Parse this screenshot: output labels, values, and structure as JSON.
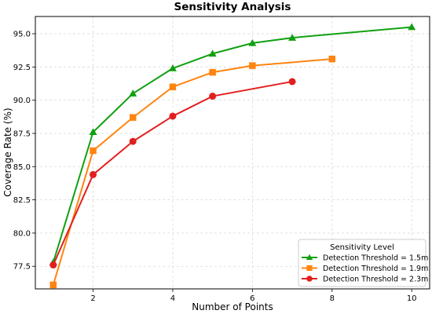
{
  "chart_data": {
    "type": "line",
    "title": "Sensitivity Analysis",
    "xlabel": "Number of Points",
    "ylabel": "Coverage Rate (%)",
    "xlim": [
      0.55,
      10.45
    ],
    "ylim": [
      75.8,
      96.3
    ],
    "xticks": [
      2,
      4,
      6,
      8,
      10
    ],
    "yticks": [
      77.5,
      80.0,
      82.5,
      85.0,
      87.5,
      90.0,
      92.5,
      95.0
    ],
    "grid": true,
    "legend": {
      "title": "Sensitivity Level",
      "placement": "bottom-right"
    },
    "series": [
      {
        "name": "Detection Threshold = 1.5m",
        "color": "#11a011",
        "marker": "triangle",
        "x": [
          1,
          2,
          3,
          4,
          5,
          6,
          7,
          10
        ],
        "y": [
          77.8,
          87.6,
          90.5,
          92.4,
          93.5,
          94.3,
          94.7,
          95.5
        ]
      },
      {
        "name": "Detection Threshold = 1.9m",
        "color": "#ff8410",
        "marker": "square",
        "x": [
          1,
          2,
          3,
          4,
          5,
          6,
          8
        ],
        "y": [
          76.1,
          86.2,
          88.7,
          91.0,
          92.1,
          92.6,
          93.1
        ]
      },
      {
        "name": "Detection Threshold = 2.3m",
        "color": "#e21f1f",
        "marker": "circle",
        "x": [
          1,
          2,
          3,
          4,
          5,
          7
        ],
        "y": [
          77.6,
          84.4,
          86.9,
          88.8,
          90.3,
          91.4
        ]
      }
    ]
  }
}
